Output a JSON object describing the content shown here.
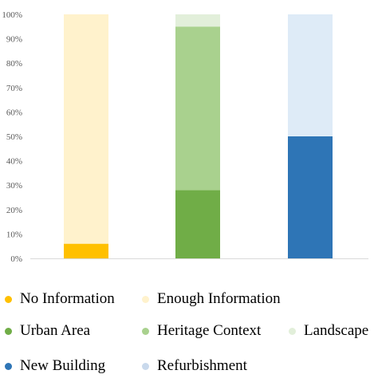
{
  "chart_data": {
    "type": "bar",
    "stacked": true,
    "ylim": [
      0,
      100
    ],
    "yticks": [
      "0%",
      "10%",
      "20%",
      "30%",
      "40%",
      "50%",
      "60%",
      "70%",
      "80%",
      "90%",
      "100%"
    ],
    "grid": false,
    "legend_position": "bottom",
    "stacks": [
      {
        "segments": [
          {
            "series": "No Information",
            "value": 6,
            "color": "#ffc000"
          },
          {
            "series": "Enough Information",
            "value": 94,
            "color": "#fff2cc"
          }
        ]
      },
      {
        "segments": [
          {
            "series": "Urban Area",
            "value": 28,
            "color": "#70ad47"
          },
          {
            "series": "Heritage Context",
            "value": 67,
            "color": "#a9d18e"
          },
          {
            "series": "Landscape",
            "value": 5,
            "color": "#e2efda"
          }
        ]
      },
      {
        "segments": [
          {
            "series": "New Building",
            "value": 50,
            "color": "#2e75b6"
          },
          {
            "series": "Refurbishment",
            "value": 50,
            "color": "#deebf7"
          }
        ]
      }
    ]
  },
  "legend": {
    "items": [
      {
        "label": "No Information",
        "color": "#ffc000"
      },
      {
        "label": "Enough Information",
        "color": "#fff2cc"
      },
      {
        "label": "Urban Area",
        "color": "#70ad47"
      },
      {
        "label": "Heritage Context",
        "color": "#a9d18e"
      },
      {
        "label": "Landscape",
        "color": "#e2efda"
      },
      {
        "label": "New Building",
        "color": "#2e75b6"
      },
      {
        "label": "Refurbishment",
        "color": "#c9d9ec"
      }
    ]
  }
}
